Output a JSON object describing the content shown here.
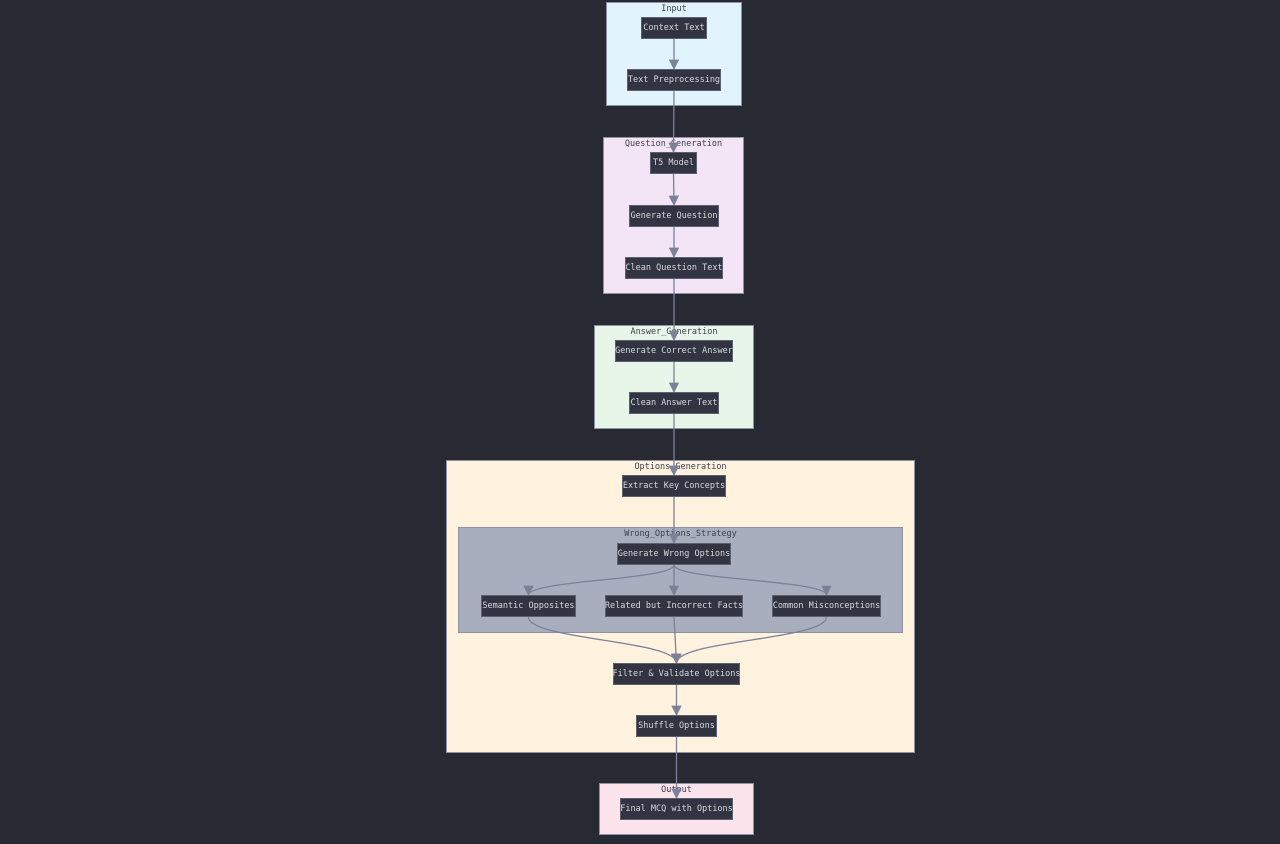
{
  "diagram": {
    "type": "flowchart",
    "colors": {
      "background": "#282a33",
      "node_fill": "#323541",
      "node_text": "#d6d8de",
      "edge": "#7b8196",
      "input_cluster": "#e1f3fd",
      "question_cluster": "#f3e5f5",
      "answer_cluster": "#e8f5e9",
      "options_cluster": "#fff3e0",
      "strategy_cluster": "#a9aebe",
      "output_cluster": "#fce4ec"
    },
    "clusters": {
      "input": "Input",
      "question": "Question_Generation",
      "answer": "Answer_Generation",
      "options": "Options_Generation",
      "strategy": "Wrong_Options_Strategy",
      "output": "Output"
    },
    "nodes": {
      "context": "Context Text",
      "preprocess": "Text Preprocessing",
      "t5": "T5 Model",
      "genq": "Generate Question",
      "cleanq": "Clean Question Text",
      "gena": "Generate Correct Answer",
      "cleana": "Clean Answer Text",
      "extract": "Extract Key Concepts",
      "genwrong": "Generate Wrong Options",
      "semantic": "Semantic Opposites",
      "related": "Related but Incorrect Facts",
      "common": "Common Misconceptions",
      "filter": "Filter & Validate Options",
      "shuffle": "Shuffle Options",
      "final": "Final MCQ with Options"
    },
    "edges": [
      [
        "context",
        "preprocess"
      ],
      [
        "preprocess",
        "t5"
      ],
      [
        "t5",
        "genq"
      ],
      [
        "genq",
        "cleanq"
      ],
      [
        "cleanq",
        "gena"
      ],
      [
        "gena",
        "cleana"
      ],
      [
        "cleana",
        "extract"
      ],
      [
        "extract",
        "genwrong"
      ],
      [
        "genwrong",
        "semantic"
      ],
      [
        "genwrong",
        "related"
      ],
      [
        "genwrong",
        "common"
      ],
      [
        "semantic",
        "filter"
      ],
      [
        "related",
        "filter"
      ],
      [
        "common",
        "filter"
      ],
      [
        "filter",
        "shuffle"
      ],
      [
        "shuffle",
        "final"
      ]
    ]
  }
}
